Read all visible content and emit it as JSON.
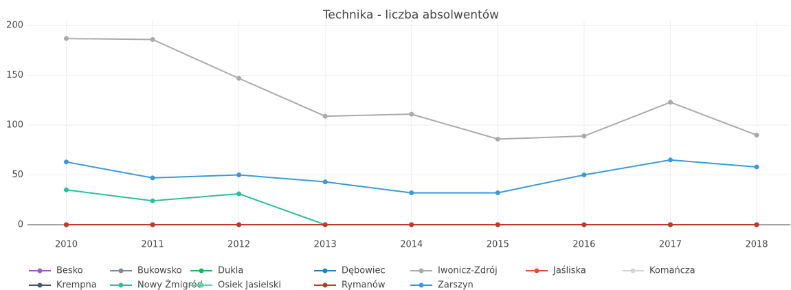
{
  "chart_data": {
    "type": "line",
    "title": "Technika - liczba absolwentów",
    "x": [
      2010,
      2011,
      2012,
      2013,
      2014,
      2015,
      2016,
      2017,
      2018
    ],
    "xlim": [
      2009.55,
      2018.39
    ],
    "xticks": [
      2010,
      2011,
      2012,
      2013,
      2014,
      2015,
      2016,
      2017,
      2018
    ],
    "ylim": [
      -9,
      205
    ],
    "yticks": [
      0,
      50,
      100,
      150,
      200
    ],
    "grid": true,
    "series": [
      {
        "name": "Besko",
        "color": "#9b59b6",
        "values": [
          0,
          0,
          0,
          0,
          0,
          0,
          0,
          0,
          0
        ]
      },
      {
        "name": "Bukowsko",
        "color": "#7f8c8d",
        "values": [
          0,
          0,
          0,
          0,
          0,
          0,
          0,
          0,
          0
        ]
      },
      {
        "name": "Dukla",
        "color": "#27ae60",
        "values": [
          0,
          0,
          0,
          0,
          0,
          0,
          0,
          0,
          0
        ]
      },
      {
        "name": "Dębowiec",
        "color": "#2980b9",
        "values": [
          0,
          0,
          0,
          0,
          0,
          0,
          0,
          0,
          0
        ]
      },
      {
        "name": "Iwonicz-Zdrój",
        "color": "#aaaaaa",
        "values": [
          187,
          186,
          147,
          109,
          111,
          86,
          89,
          123,
          90
        ]
      },
      {
        "name": "Jaśliska",
        "color": "#e74c3c",
        "values": [
          0,
          0,
          0,
          0,
          0,
          0,
          0,
          0,
          0
        ]
      },
      {
        "name": "Komańcza",
        "color": "#d5d5d5",
        "values": [
          0,
          0,
          0,
          0,
          0,
          0,
          0,
          0,
          0
        ]
      },
      {
        "name": "Krempna",
        "color": "#4a5568",
        "values": [
          0,
          0,
          0,
          0,
          0,
          0,
          0,
          0,
          0
        ]
      },
      {
        "name": "Nowy Żmigród",
        "color": "#2bbf9b",
        "values": [
          35,
          24,
          31,
          0,
          0,
          0,
          0,
          0,
          0
        ]
      },
      {
        "name": "Osiek Jasielski",
        "color": "#5fd3a6",
        "values": [
          0,
          0,
          0,
          0,
          0,
          0,
          0,
          0,
          0
        ]
      },
      {
        "name": "Rymanów",
        "color": "#c0392b",
        "values": [
          0,
          0,
          0,
          0,
          0,
          0,
          0,
          0,
          0
        ]
      },
      {
        "name": "Zarszyn",
        "color": "#3a9ad9",
        "values": [
          63,
          47,
          50,
          43,
          32,
          32,
          50,
          65,
          58
        ]
      }
    ]
  }
}
